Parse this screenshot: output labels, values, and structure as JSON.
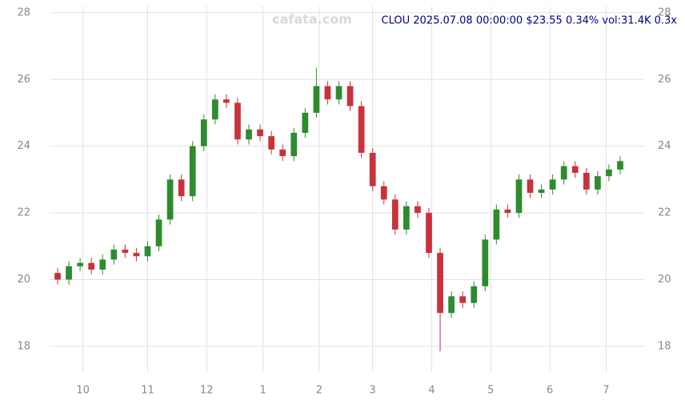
{
  "chart_data": {
    "type": "candlestick",
    "title": "CLOU 2025.07.08 00:00:00 $23.55 0.34% vol:31.4K 0.3x",
    "watermark": "cafata.com",
    "x": [
      0,
      4,
      8,
      12,
      16,
      20,
      24,
      28,
      32,
      36,
      40,
      44,
      48,
      52,
      56,
      60,
      64,
      68,
      72,
      76,
      80,
      84,
      88,
      92,
      96,
      100,
      104,
      108,
      112,
      116,
      120,
      124,
      128,
      132,
      136,
      140,
      144,
      148,
      152,
      156,
      160,
      164,
      168,
      172,
      176,
      180,
      184,
      188,
      192,
      196,
      200
    ],
    "open": [
      20.2,
      20.0,
      20.4,
      20.5,
      20.3,
      20.6,
      20.9,
      20.8,
      20.7,
      21.0,
      21.8,
      23.0,
      22.5,
      24.0,
      24.8,
      25.4,
      25.3,
      24.2,
      24.5,
      24.3,
      23.9,
      23.7,
      24.4,
      25.0,
      25.8,
      25.4,
      25.8,
      25.2,
      23.8,
      22.8,
      22.4,
      21.5,
      22.2,
      22.0,
      20.8,
      19.0,
      19.5,
      19.3,
      19.8,
      21.2,
      22.1,
      22.0,
      23.0,
      22.6,
      22.7,
      23.0,
      23.4,
      23.2,
      22.7,
      23.1,
      23.3
    ],
    "high": [
      20.35,
      20.55,
      20.65,
      20.65,
      20.75,
      21.05,
      21.05,
      20.95,
      21.15,
      21.95,
      23.15,
      23.15,
      24.15,
      24.95,
      25.55,
      25.55,
      25.45,
      24.65,
      24.65,
      24.45,
      24.05,
      24.55,
      25.15,
      26.35,
      25.95,
      25.95,
      25.95,
      25.35,
      23.95,
      22.95,
      22.55,
      22.35,
      22.35,
      22.15,
      20.95,
      19.65,
      19.65,
      19.95,
      21.35,
      22.25,
      22.25,
      23.15,
      23.15,
      22.85,
      23.15,
      23.55,
      23.55,
      23.35,
      23.25,
      23.45,
      23.7
    ],
    "low": [
      19.85,
      19.85,
      20.25,
      20.15,
      20.15,
      20.45,
      20.65,
      20.55,
      20.55,
      20.85,
      21.65,
      22.35,
      22.35,
      23.85,
      24.65,
      25.15,
      24.05,
      24.05,
      24.15,
      23.75,
      23.55,
      23.55,
      24.25,
      24.85,
      25.25,
      25.25,
      25.05,
      23.65,
      22.65,
      22.25,
      21.35,
      21.35,
      21.85,
      20.65,
      17.85,
      18.85,
      19.15,
      19.15,
      19.65,
      21.05,
      21.85,
      21.85,
      22.45,
      22.45,
      22.55,
      22.85,
      23.05,
      22.55,
      22.55,
      22.95,
      23.15
    ],
    "close": [
      20.0,
      20.4,
      20.5,
      20.3,
      20.6,
      20.9,
      20.8,
      20.7,
      21.0,
      21.8,
      23.0,
      22.5,
      24.0,
      24.8,
      25.4,
      25.3,
      24.2,
      24.5,
      24.3,
      23.9,
      23.7,
      24.4,
      25.0,
      25.8,
      25.4,
      25.8,
      25.2,
      23.8,
      22.8,
      22.4,
      21.5,
      22.2,
      22.0,
      20.8,
      19.0,
      19.5,
      19.3,
      19.8,
      21.2,
      22.1,
      22.0,
      23.0,
      22.6,
      22.7,
      23.0,
      23.4,
      23.2,
      22.7,
      23.1,
      23.3,
      23.55
    ],
    "up_color": "#2e8b2e",
    "down_color": "#c8323c",
    "xlim": [
      0,
      200
    ],
    "xticks": [
      {
        "value": 9,
        "label": "10"
      },
      {
        "value": 32,
        "label": "11"
      },
      {
        "value": 53,
        "label": "12"
      },
      {
        "value": 73,
        "label": "1"
      },
      {
        "value": 93,
        "label": "2"
      },
      {
        "value": 112,
        "label": "3"
      },
      {
        "value": 133,
        "label": "4"
      },
      {
        "value": 154,
        "label": "5"
      },
      {
        "value": 175,
        "label": "6"
      },
      {
        "value": 195,
        "label": "7"
      }
    ],
    "ylim": [
      17.47,
      28.38
    ],
    "yticks": [
      18,
      20,
      22,
      24,
      26,
      28
    ],
    "grid": true
  }
}
